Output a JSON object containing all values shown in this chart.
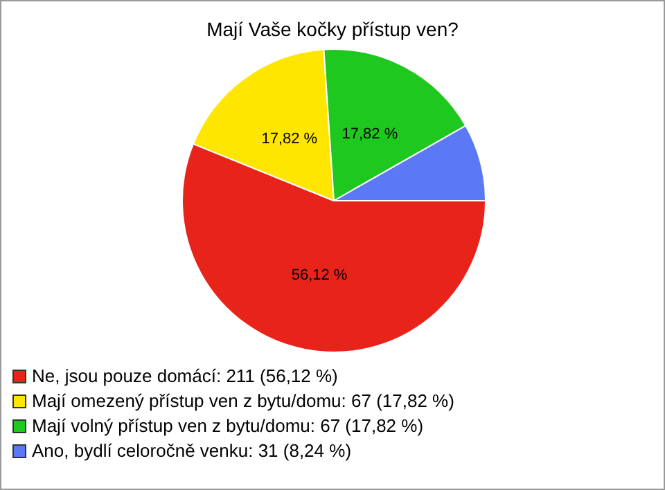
{
  "chart_data": {
    "type": "pie",
    "title": "Mají Vaše kočky přístup ven?",
    "categories": [
      "Ne, jsou pouze domácí: 211 (56,12 %)",
      "Mají omezený přístup ven z bytu/domu: 67 (17,82 %)",
      "Mají volný přístup ven z bytu/domu: 67 (17,82 %)",
      "Ano, bydlí celoročně venku: 31 (8,24 %)"
    ],
    "values": [
      56.12,
      17.82,
      17.82,
      8.24
    ],
    "colors": [
      "#e8231a",
      "#ffe600",
      "#1ec81e",
      "#5b79f5"
    ],
    "value_labels": [
      "56,12 %",
      "17,82 %",
      "17,82 %",
      null
    ],
    "legend": "bottom left"
  }
}
